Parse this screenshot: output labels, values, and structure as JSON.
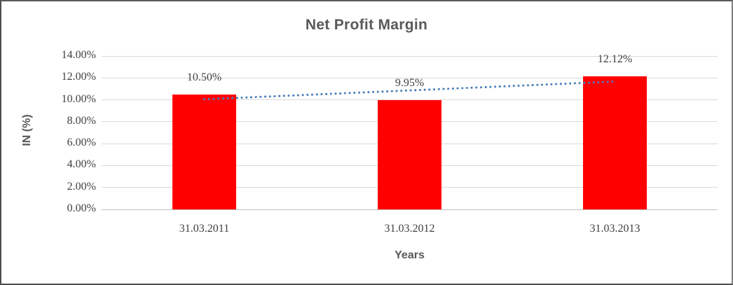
{
  "window": {
    "background": "#ffffff",
    "border_color": "#7f7f7f"
  },
  "chart_data": {
    "type": "bar",
    "title": "Net Profit Margin",
    "xlabel": "Years",
    "ylabel": "IN (%)",
    "categories": [
      "31.03.2011",
      "31.03.2012",
      "31.03.2013"
    ],
    "values": [
      10.5,
      9.95,
      12.12
    ],
    "data_labels": [
      "10.50%",
      "9.95%",
      "12.12%"
    ],
    "ylim": [
      0,
      14
    ],
    "yticks": {
      "values": [
        0,
        2,
        4,
        6,
        8,
        10,
        12,
        14
      ],
      "labels": [
        "0.00%",
        "2.00%",
        "4.00%",
        "6.00%",
        "8.00%",
        "10.00%",
        "12.00%",
        "14.00%"
      ]
    },
    "grid": true,
    "legend": "none",
    "bar_color": "#FF0000",
    "gridline_color": "#D9D9D9",
    "axis_line_color": "#BFBFBF",
    "tick_text_color": "#404040",
    "title_color": "#595959",
    "trendline": {
      "type": "linear",
      "style": "dotted",
      "color": "#4A7EBB",
      "start_value": 10.05,
      "end_value": 11.67
    }
  }
}
